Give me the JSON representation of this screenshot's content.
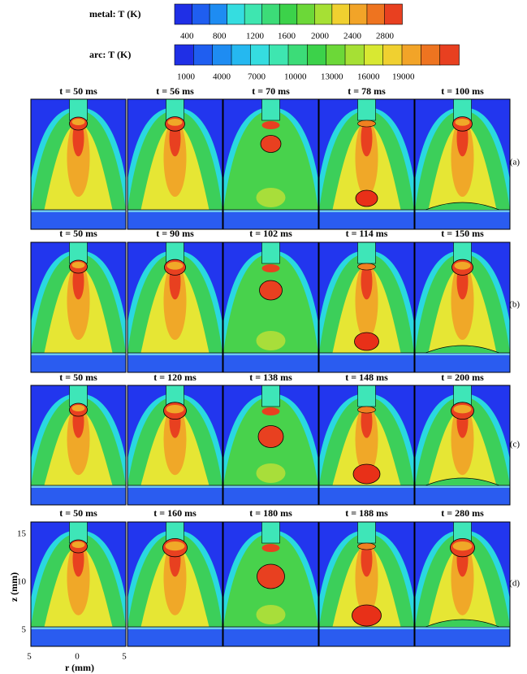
{
  "colorbars": [
    {
      "title": "metal: T (K)",
      "ticks": [
        "400",
        "800",
        "1200",
        "1600",
        "2000",
        "2400",
        "2800"
      ]
    },
    {
      "title": "arc: T (K)",
      "ticks": [
        "1000",
        "4000",
        "7000",
        "10000",
        "13000",
        "16000",
        "19000"
      ]
    }
  ],
  "rows": [
    {
      "label": "(a)",
      "times": [
        "t = 50 ms",
        "t = 56 ms",
        "t = 70 ms",
        "t = 78 ms",
        "t = 100 ms"
      ]
    },
    {
      "label": "(b)",
      "times": [
        "t = 50 ms",
        "t = 90 ms",
        "t = 102 ms",
        "t = 114 ms",
        "t = 150 ms"
      ]
    },
    {
      "label": "(c)",
      "times": [
        "t = 50 ms",
        "t = 120 ms",
        "t = 138 ms",
        "t = 148 ms",
        "t = 200 ms"
      ]
    },
    {
      "label": "(d)",
      "times": [
        "t = 50 ms",
        "t = 160 ms",
        "t = 180 ms",
        "t = 188 ms",
        "t = 280 ms"
      ]
    }
  ],
  "axes": {
    "z_label": "z (mm)",
    "z_ticks": [
      "15",
      "10",
      "5"
    ],
    "r_label": "r (mm)",
    "r_ticks": [
      "5",
      "0",
      "5"
    ]
  }
}
